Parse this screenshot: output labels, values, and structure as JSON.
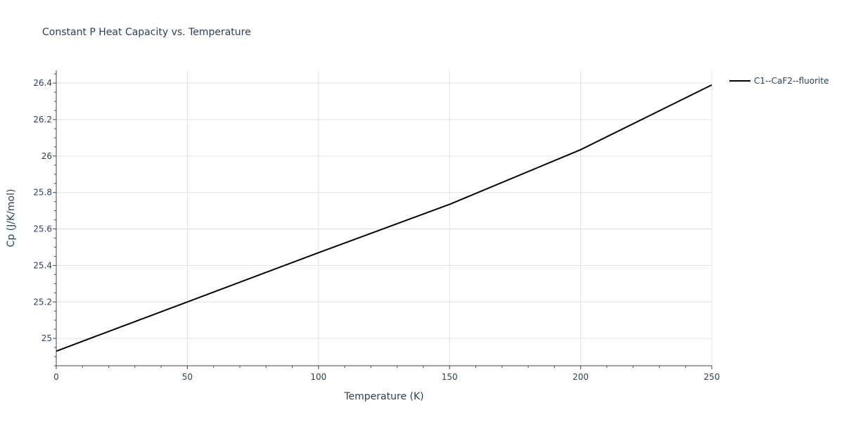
{
  "chart_data": {
    "type": "line",
    "title": "Constant P Heat Capacity vs. Temperature",
    "xlabel": "Temperature (K)",
    "ylabel": "Cp (J/K/mol)",
    "xlim": [
      0,
      250
    ],
    "ylim": [
      24.85,
      26.47
    ],
    "x_ticks": [
      0,
      50,
      100,
      150,
      200,
      250
    ],
    "y_ticks": [
      25,
      25.2,
      25.4,
      25.6,
      25.8,
      26,
      26.2,
      26.4
    ],
    "grid": true,
    "legend_position": "top-right",
    "series": [
      {
        "name": "C1--CaF2--fluorite",
        "color": "#000000",
        "x": [
          0,
          50,
          100,
          150,
          200,
          250
        ],
        "y": [
          24.93,
          25.2,
          25.47,
          25.735,
          26.035,
          26.39
        ]
      }
    ]
  }
}
